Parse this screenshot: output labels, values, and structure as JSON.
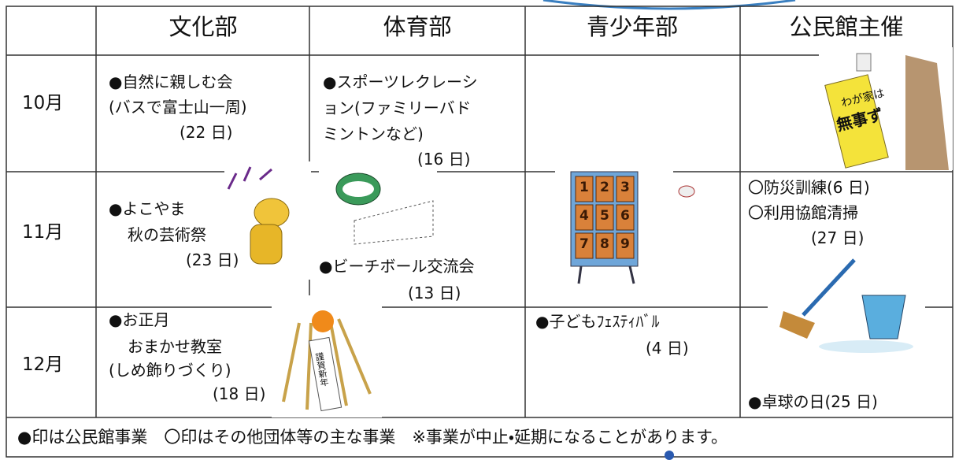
{
  "header": {
    "columns": [
      "文化部",
      "体育部",
      "青少年部",
      "公民館主催"
    ]
  },
  "rows": [
    {
      "month": "10月",
      "culture": [
        "●自然に親しむ会",
        "(バスで富士山一周)",
        "(22 日)"
      ],
      "sports": [
        "●スポーツレクレーシ",
        "ョン(ファミリーバド",
        "ミントンなど)",
        "(16 日)"
      ],
      "sign": [
        "わが家は",
        "無事ず"
      ]
    },
    {
      "month": "11月",
      "culture": [
        "●よこやま",
        "秋の芸術祭",
        "(23 日)"
      ],
      "sports": [
        "●ビーチボール交流会",
        "(13 日)"
      ],
      "board": [
        "1",
        "2",
        "3",
        "4",
        "5",
        "6",
        "7",
        "8",
        "9"
      ],
      "community": [
        "〇防災訓練(6 日)",
        "〇利用協館清掃",
        "(27 日)"
      ]
    },
    {
      "month": "12月",
      "culture": [
        "●お正月",
        "おまかせ教室",
        "(しめ飾りづくり)",
        "(18 日)"
      ],
      "ornament": "謹賀新年",
      "youth": [
        "●子どもﾌｪｽﾃｨﾊﾞﾙ",
        "(4 日)"
      ],
      "community": [
        "●卓球の日(25 日)"
      ]
    }
  ],
  "footer": "●印は公民館事業　〇印はその他団体等の主な事業　※事業が中止・延期になることがあります。"
}
